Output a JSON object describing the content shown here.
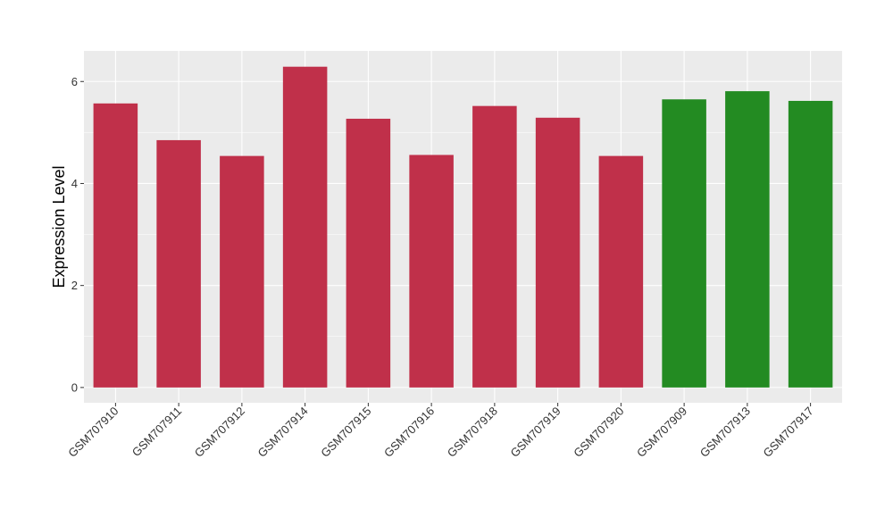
{
  "chart_data": {
    "type": "bar",
    "title": "",
    "xlabel": "",
    "ylabel": "Expression Level",
    "categories": [
      "GSM707910",
      "GSM707911",
      "GSM707912",
      "GSM707914",
      "GSM707915",
      "GSM707916",
      "GSM707918",
      "GSM707919",
      "GSM707920",
      "GSM707909",
      "GSM707913",
      "GSM707917"
    ],
    "values": [
      5.57,
      4.85,
      4.54,
      6.29,
      5.27,
      4.56,
      5.52,
      5.29,
      4.54,
      5.65,
      5.81,
      5.62
    ],
    "bar_colors": [
      "#c0304a",
      "#c0304a",
      "#c0304a",
      "#c0304a",
      "#c0304a",
      "#c0304a",
      "#c0304a",
      "#c0304a",
      "#c0304a",
      "#238b22",
      "#238b22",
      "#238b22"
    ],
    "ylim": [
      -0.3,
      6.6
    ],
    "yticks": [
      0,
      2,
      4,
      6
    ],
    "grid": true,
    "panel_background": "#ebebeb",
    "grid_color": "#ffffff"
  }
}
